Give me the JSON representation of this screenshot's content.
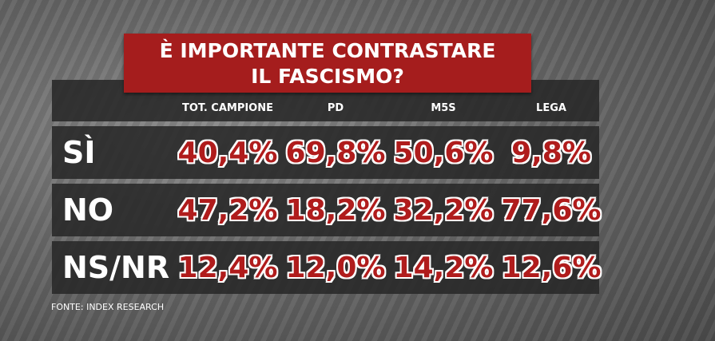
{
  "header": {
    "title_lines": [
      "È IMPORTANTE CONTRASTARE",
      "IL FASCISMO?"
    ]
  },
  "table": {
    "columns": [
      "TOT. CAMPIONE",
      "PD",
      "M5S",
      "LEGA"
    ],
    "rows": [
      {
        "label": "SÌ",
        "values": [
          "40,4%",
          "69,8%",
          "50,6%",
          "9,8%"
        ]
      },
      {
        "label": "NO",
        "values": [
          "47,2%",
          "18,2%",
          "32,2%",
          "77,6%"
        ]
      },
      {
        "label": "NS/NR",
        "values": [
          "12,4%",
          "12,0%",
          "14,2%",
          "12,6%"
        ]
      }
    ]
  },
  "source": "FONTE: INDEX RESEARCH"
}
